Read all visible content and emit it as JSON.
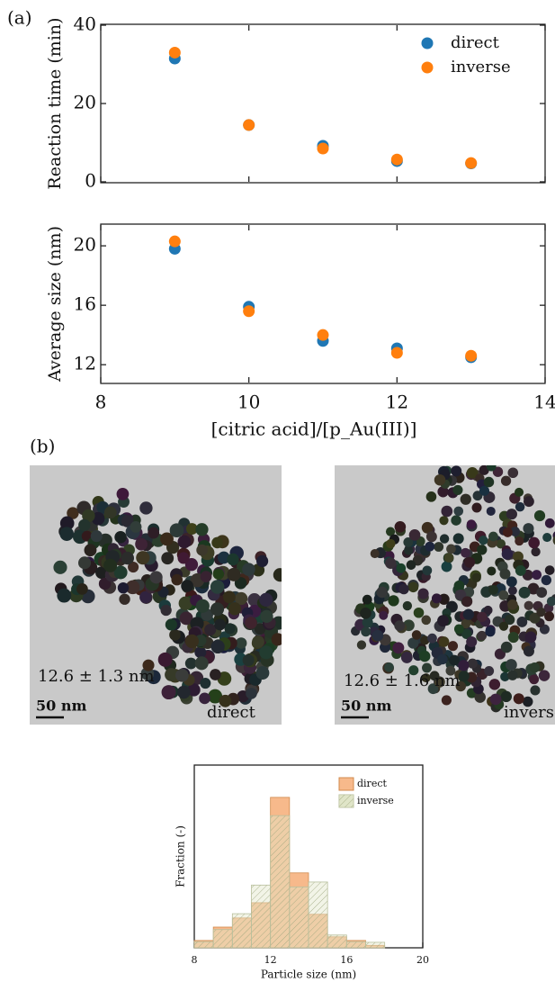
{
  "panel_labels": [
    "(a)",
    "(b)"
  ],
  "chart_data": [
    {
      "type": "scatter",
      "ylabel": "Reaction time (min)",
      "x": [
        9,
        10,
        11,
        12,
        13
      ],
      "series": [
        {
          "name": "direct",
          "color": "#1f77b4",
          "values": [
            31.5,
            14.5,
            9.2,
            5.3,
            4.7
          ]
        },
        {
          "name": "inverse",
          "color": "#ff7f0e",
          "values": [
            33,
            14.5,
            8.5,
            5.7,
            4.8
          ]
        }
      ],
      "xlim": [
        8,
        14
      ],
      "xticks": [
        8,
        10,
        12,
        14
      ],
      "ylim": [
        0,
        40
      ],
      "yticks": [
        0,
        20,
        40
      ],
      "legend": "upper right"
    },
    {
      "type": "scatter",
      "ylabel": "Average size (nm)",
      "xlabel": "[citric acid]/[p_Au(III)]",
      "x": [
        9,
        10,
        11,
        12,
        13
      ],
      "series": [
        {
          "name": "direct",
          "color": "#1f77b4",
          "values": [
            19.8,
            15.9,
            13.6,
            13.1,
            12.5
          ]
        },
        {
          "name": "inverse",
          "color": "#ff7f0e",
          "values": [
            20.3,
            15.6,
            14.0,
            12.8,
            12.6
          ]
        }
      ],
      "xlim": [
        8,
        14
      ],
      "xticks": [
        8,
        10,
        12,
        14
      ],
      "ylim": [
        10.8,
        21.4
      ],
      "yticks": [
        12,
        16,
        20
      ]
    },
    {
      "type": "histogram",
      "xlabel": "Particle size (nm)",
      "ylabel": "Fraction (-)",
      "bins": [
        8,
        9,
        10,
        11,
        12,
        13,
        14,
        15,
        16,
        17,
        18
      ],
      "series": [
        {
          "name": "direct",
          "color": "#f7b98b",
          "values": [
            0.012,
            0.034,
            0.049,
            0.074,
            0.247,
            0.123,
            0.055,
            0.018,
            0.012,
            0.004
          ]
        },
        {
          "name": "inverse",
          "color": "#dfe4c6",
          "values": [
            0.01,
            0.03,
            0.056,
            0.103,
            0.217,
            0.1,
            0.108,
            0.021,
            0.01,
            0.009
          ]
        }
      ],
      "xlim": [
        8,
        20
      ],
      "xticks": [
        8,
        12,
        16,
        20
      ],
      "ylim": [
        0,
        0.3
      ],
      "legend": "upper right"
    }
  ],
  "images": [
    {
      "caption": "12.6 ± 1.3 nm",
      "scale_bar": "50 nm",
      "label": "direct"
    },
    {
      "caption": "12.6 ± 1.6 nm",
      "scale_bar": "50 nm",
      "label": "inverse"
    }
  ]
}
